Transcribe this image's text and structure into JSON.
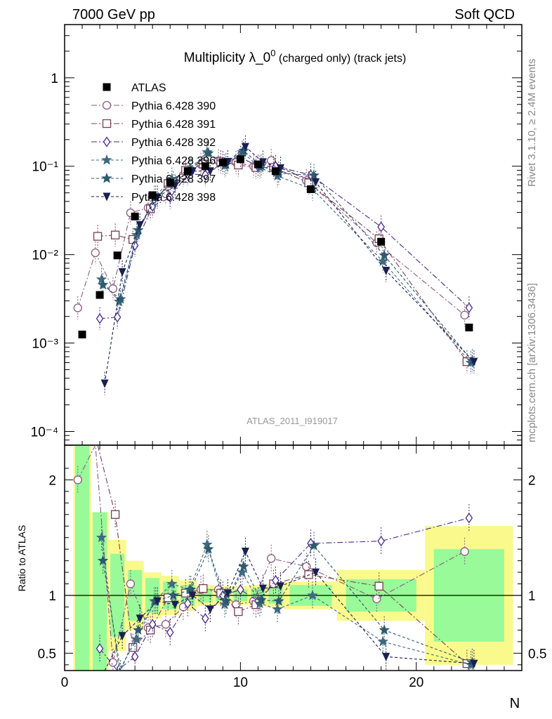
{
  "header": {
    "left": "7000 GeV pp",
    "right": "Soft QCD"
  },
  "side_labels": {
    "rivet": "Rivet 3.1.10, ≥ 2.4M events",
    "mcplots": "mcplots.cern.ch [arXiv:1306.3436]"
  },
  "colors": {
    "data": "#000000",
    "p390": "#8a5a82",
    "p391": "#7a3f52",
    "p392": "#4b2a8a",
    "p396": "#3f6a80",
    "p397": "#2f5a6e",
    "p398": "#1a2050",
    "band_inner": "#98fa98",
    "band_outer": "#fafa8c"
  },
  "chart_data": {
    "type": "scatter",
    "title": "Multiplicity λ_0⁰ (charged only) (track jets)",
    "title_main": "Multiplicity λ_0",
    "title_sup": "0",
    "title_tail": " (charged only) (track jets)",
    "xlabel": "N",
    "ylabel_ratio": "Ratio to ATLAS",
    "watermark": "ATLAS_2011_I919017",
    "xlim": [
      0,
      26
    ],
    "ylim_main": [
      7e-05,
      4
    ],
    "ylim_ratio": [
      0.35,
      2.3
    ],
    "yscale_main": "log",
    "x_ticks": [
      "0",
      "10",
      "20"
    ],
    "y_ticks_main": [
      "1",
      "10⁻¹",
      "10⁻²",
      "10⁻³",
      "10⁻⁴"
    ],
    "y_ticks_ratio": [
      "2",
      "1",
      "0.5"
    ],
    "legend_position": "top-left",
    "data_series": {
      "name": "ATLAS",
      "x": [
        1,
        2,
        3,
        4,
        5,
        6,
        7,
        8,
        9,
        10,
        11,
        12,
        14,
        18,
        23
      ],
      "y": [
        0.00125,
        0.0035,
        0.0098,
        0.027,
        0.047,
        0.065,
        0.088,
        0.1,
        0.11,
        0.12,
        0.105,
        0.088,
        0.055,
        0.014,
        0.0015
      ],
      "bin_lo": [
        0.5,
        1.5,
        2.5,
        3.5,
        4.5,
        5.5,
        6.5,
        7.5,
        8.5,
        9.5,
        10.5,
        11.5,
        12.5,
        15.5,
        20.5
      ],
      "bin_hi": [
        1.5,
        2.5,
        3.5,
        4.5,
        5.5,
        6.5,
        7.5,
        8.5,
        9.5,
        10.5,
        11.5,
        12.5,
        15.5,
        20.5,
        25.5
      ],
      "band_inner": [
        1.8,
        0.72,
        0.36,
        0.22,
        0.15,
        0.12,
        0.09,
        0.06,
        0.05,
        0.05,
        0.06,
        0.07,
        0.09,
        0.14,
        0.4
      ],
      "band_outer": [
        2.3,
        0.72,
        0.48,
        0.3,
        0.2,
        0.17,
        0.13,
        0.09,
        0.08,
        0.08,
        0.09,
        0.1,
        0.12,
        0.22,
        0.6
      ]
    },
    "series": [
      {
        "name": "Pythia 6.428 390",
        "color_key": "p390",
        "marker": "circle",
        "dash": "8,3,2,3",
        "ratio": [
          2.0,
          3.0,
          0.42,
          1.1,
          0.72,
          0.75,
          0.9,
          1.05,
          1.05,
          0.92,
          0.95,
          1.32,
          1.25,
          0.97,
          1.38
        ]
      },
      {
        "name": "Pythia 6.428 391",
        "color_key": "p391",
        "marker": "square",
        "dash": "8,3,2,3",
        "ratio": [
          null,
          4.6,
          1.7,
          0.55,
          0.7,
          0.98,
          1.02,
          1.06,
          1.02,
          0.86,
          0.92,
          1.1,
          1.18,
          1.08,
          0.41
        ]
      },
      {
        "name": "Pythia 6.428 392",
        "color_key": "p392",
        "marker": "diamond",
        "dash": "8,3,2,3",
        "ratio": [
          null,
          0.54,
          0.2,
          0.47,
          0.75,
          0.68,
          0.93,
          0.8,
          1.0,
          1.05,
          0.95,
          1.13,
          1.45,
          1.47,
          1.67
        ]
      },
      {
        "name": "Pythia 6.428 396",
        "color_key": "p396",
        "marker": "star",
        "dash": "4,3",
        "ratio": [
          null,
          1.5,
          0.3,
          0.62,
          0.95,
          1.1,
          1.05,
          1.44,
          0.92,
          1.2,
          0.93,
          0.88,
          1.0,
          0.6,
          0.4
        ]
      },
      {
        "name": "Pythia 6.428 397",
        "color_key": "p397",
        "marker": "star",
        "dash": "4,3",
        "ratio": [
          null,
          1.3,
          0.32,
          0.7,
          0.95,
          1.0,
          1.05,
          1.4,
          0.95,
          1.25,
          0.96,
          0.95,
          1.43,
          0.7,
          0.42
        ]
      },
      {
        "name": "Pythia 6.428 398",
        "color_key": "p398",
        "marker": "triangle-down",
        "dash": "4,3",
        "ratio": [
          null,
          0.1,
          0.65,
          0.8,
          0.95,
          0.92,
          1.0,
          0.88,
          1.02,
          1.38,
          1.06,
          1.08,
          1.2,
          0.47,
          0.41
        ]
      }
    ]
  }
}
